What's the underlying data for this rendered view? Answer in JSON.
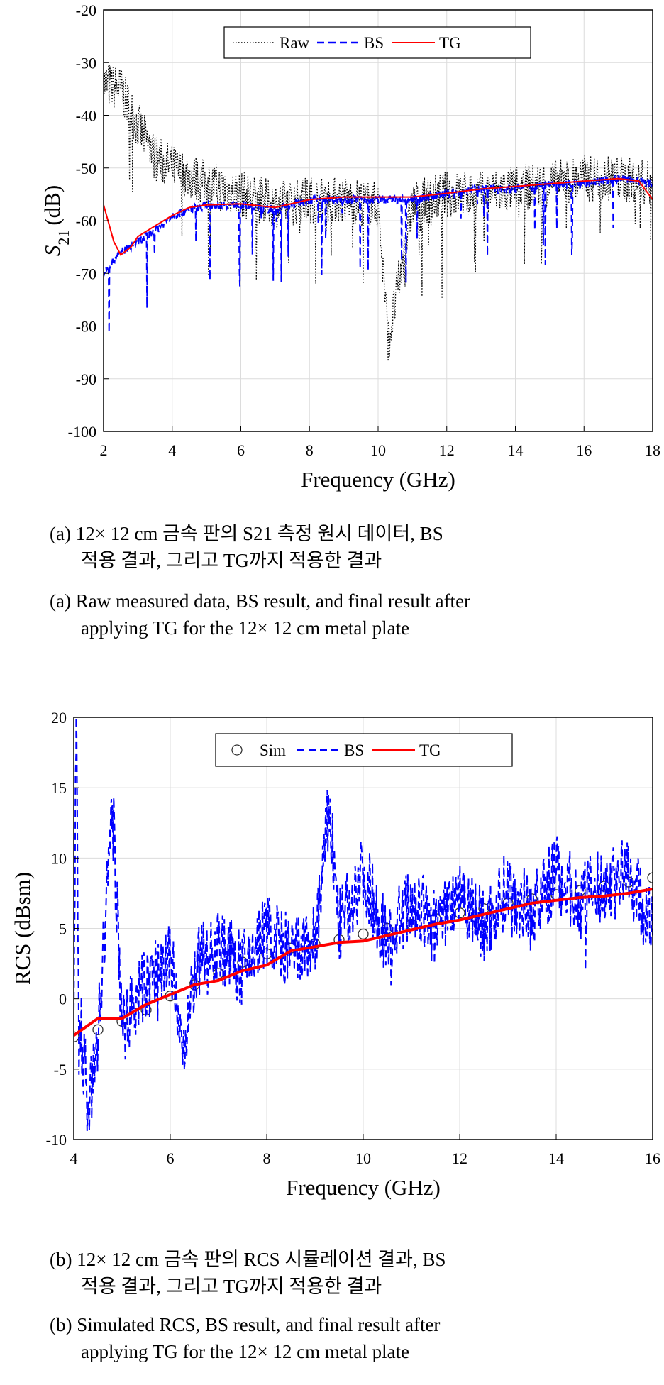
{
  "captions": {
    "a_ko_line1": "(a) 12× 12 cm 금속 판의 S21 측정 원시 데이터, BS",
    "a_ko_line2": "적용 결과, 그리고 TG까지 적용한 결과",
    "a_en_line1": "(a) Raw measured data, BS result, and final result after",
    "a_en_line2": "applying TG for the 12× 12 cm metal plate",
    "b_ko_line1": "(b) 12× 12 cm 금속 판의 RCS 시뮬레이션 결과, BS",
    "b_ko_line2": "적용 결과, 그리고 TG까지 적용한 결과",
    "b_en_line1": "(b) Simulated RCS, BS result, and final result after",
    "b_en_line2": "applying TG for the 12× 12 cm metal plate"
  },
  "chart_data": [
    {
      "type": "line",
      "title": "",
      "xlabel": "Frequency (GHz)",
      "ylabel": "S21 (dB)",
      "xlim": [
        2,
        18
      ],
      "ylim": [
        -100,
        -20
      ],
      "xticks": [
        "2",
        "4",
        "6",
        "8",
        "10",
        "12",
        "14",
        "16",
        "18"
      ],
      "yticks": [
        "-20",
        "-30",
        "-40",
        "-50",
        "-60",
        "-70",
        "-80",
        "-90",
        "-100"
      ],
      "grid": true,
      "legend": "top-center",
      "series": [
        {
          "name": "Raw",
          "style": "dotted",
          "color": "#000000",
          "x": [
            2,
            2.5,
            3,
            3.5,
            4,
            5,
            6,
            7,
            8,
            9,
            10,
            10.3,
            11,
            12,
            13,
            14,
            15,
            16,
            17,
            18
          ],
          "y": [
            -34,
            -35,
            -42,
            -48,
            -50,
            -53,
            -55,
            -57,
            -56,
            -56,
            -57,
            -83,
            -57,
            -55,
            -55,
            -54,
            -53,
            -52,
            -52,
            -53
          ]
        },
        {
          "name": "BS",
          "style": "dashed",
          "color": "#0000ff",
          "x": [
            2,
            2.5,
            3,
            3.5,
            4,
            5,
            6,
            7,
            8,
            9,
            10,
            11,
            12,
            13,
            14,
            15,
            16,
            17,
            18
          ],
          "y": [
            -70,
            -66,
            -64,
            -62,
            -59,
            -57,
            -57,
            -58,
            -56,
            -56,
            -56,
            -56,
            -55,
            -54,
            -54,
            -53,
            -53,
            -52,
            -53
          ]
        },
        {
          "name": "TG",
          "style": "solid",
          "color": "#ff0000",
          "x": [
            2,
            2.3,
            2.5,
            2.8,
            3,
            3.5,
            4,
            4.5,
            5,
            6,
            7,
            8,
            9,
            10,
            11,
            12,
            13,
            14,
            15,
            16,
            17,
            17.6,
            18
          ],
          "y": [
            -57,
            -64,
            -66.5,
            -65,
            -63,
            -61,
            -59,
            -57.5,
            -57,
            -56.8,
            -57.5,
            -56,
            -55.5,
            -55.5,
            -55.5,
            -54.8,
            -54,
            -53.5,
            -53,
            -52.5,
            -52,
            -52.5,
            -56
          ]
        }
      ]
    },
    {
      "type": "line",
      "title": "",
      "xlabel": "Frequency (GHz)",
      "ylabel": "RCS (dBsm)",
      "xlim": [
        4,
        16
      ],
      "ylim": [
        -10,
        20
      ],
      "xticks": [
        "4",
        "6",
        "8",
        "10",
        "12",
        "14",
        "16"
      ],
      "yticks": [
        "20",
        "15",
        "10",
        "5",
        "0",
        "-5",
        "-10"
      ],
      "grid": true,
      "legend": "top-center",
      "series": [
        {
          "name": "Sim",
          "style": "markers",
          "color": "#000000",
          "x": [
            4.0,
            4.5,
            5.0,
            5.5,
            6.0,
            6.5,
            7.0,
            7.5,
            8.0,
            8.5,
            9.0,
            9.5,
            10.0,
            10.5,
            11.0,
            11.5,
            12.0,
            12.5,
            13.0,
            13.5,
            14.0,
            14.5,
            15.0,
            15.5,
            16.0
          ],
          "y": [
            -2.7,
            -2.2,
            -1.6,
            -0.8,
            0.2,
            1.0,
            1.8,
            2.6,
            3.2,
            3.6,
            3.9,
            4.2,
            4.6,
            5.0,
            5.3,
            5.7,
            6.1,
            6.4,
            6.8,
            7.1,
            7.4,
            7.7,
            8.0,
            8.3,
            8.6
          ]
        },
        {
          "name": "BS",
          "style": "dashed",
          "color": "#0000ff",
          "x": [
            4.0,
            4.05,
            4.1,
            4.3,
            4.5,
            4.8,
            5.0,
            5.5,
            6.0,
            6.3,
            6.5,
            7.0,
            7.5,
            8.0,
            8.5,
            9.0,
            9.3,
            9.5,
            10.0,
            10.5,
            11.0,
            11.5,
            12.0,
            12.5,
            13.0,
            13.5,
            14.0,
            14.5,
            15.0,
            15.5,
            16.0
          ],
          "y": [
            -1,
            20,
            0,
            -8,
            -3,
            13.8,
            -2,
            1,
            3,
            -4.5,
            2,
            4,
            2,
            5,
            3,
            4,
            13.5,
            5,
            9,
            4,
            7,
            5,
            8,
            5,
            8,
            6,
            9,
            7,
            8,
            9,
            5
          ]
        },
        {
          "name": "TG",
          "style": "solid",
          "color": "#ff0000",
          "x": [
            4.0,
            4.5,
            5.0,
            5.5,
            6.0,
            6.5,
            7.0,
            7.5,
            8.0,
            8.5,
            9.0,
            9.5,
            10.0,
            10.5,
            11.0,
            11.5,
            12.0,
            12.5,
            13.0,
            13.5,
            14.0,
            14.5,
            15.0,
            15.5,
            16.0
          ],
          "y": [
            -2.6,
            -1.4,
            -1.4,
            -0.4,
            0.3,
            1.0,
            1.3,
            2.0,
            2.4,
            3.4,
            3.7,
            4.0,
            4.1,
            4.5,
            4.9,
            5.3,
            5.6,
            6.0,
            6.4,
            6.8,
            7.0,
            7.2,
            7.3,
            7.5,
            7.8
          ]
        }
      ]
    }
  ]
}
